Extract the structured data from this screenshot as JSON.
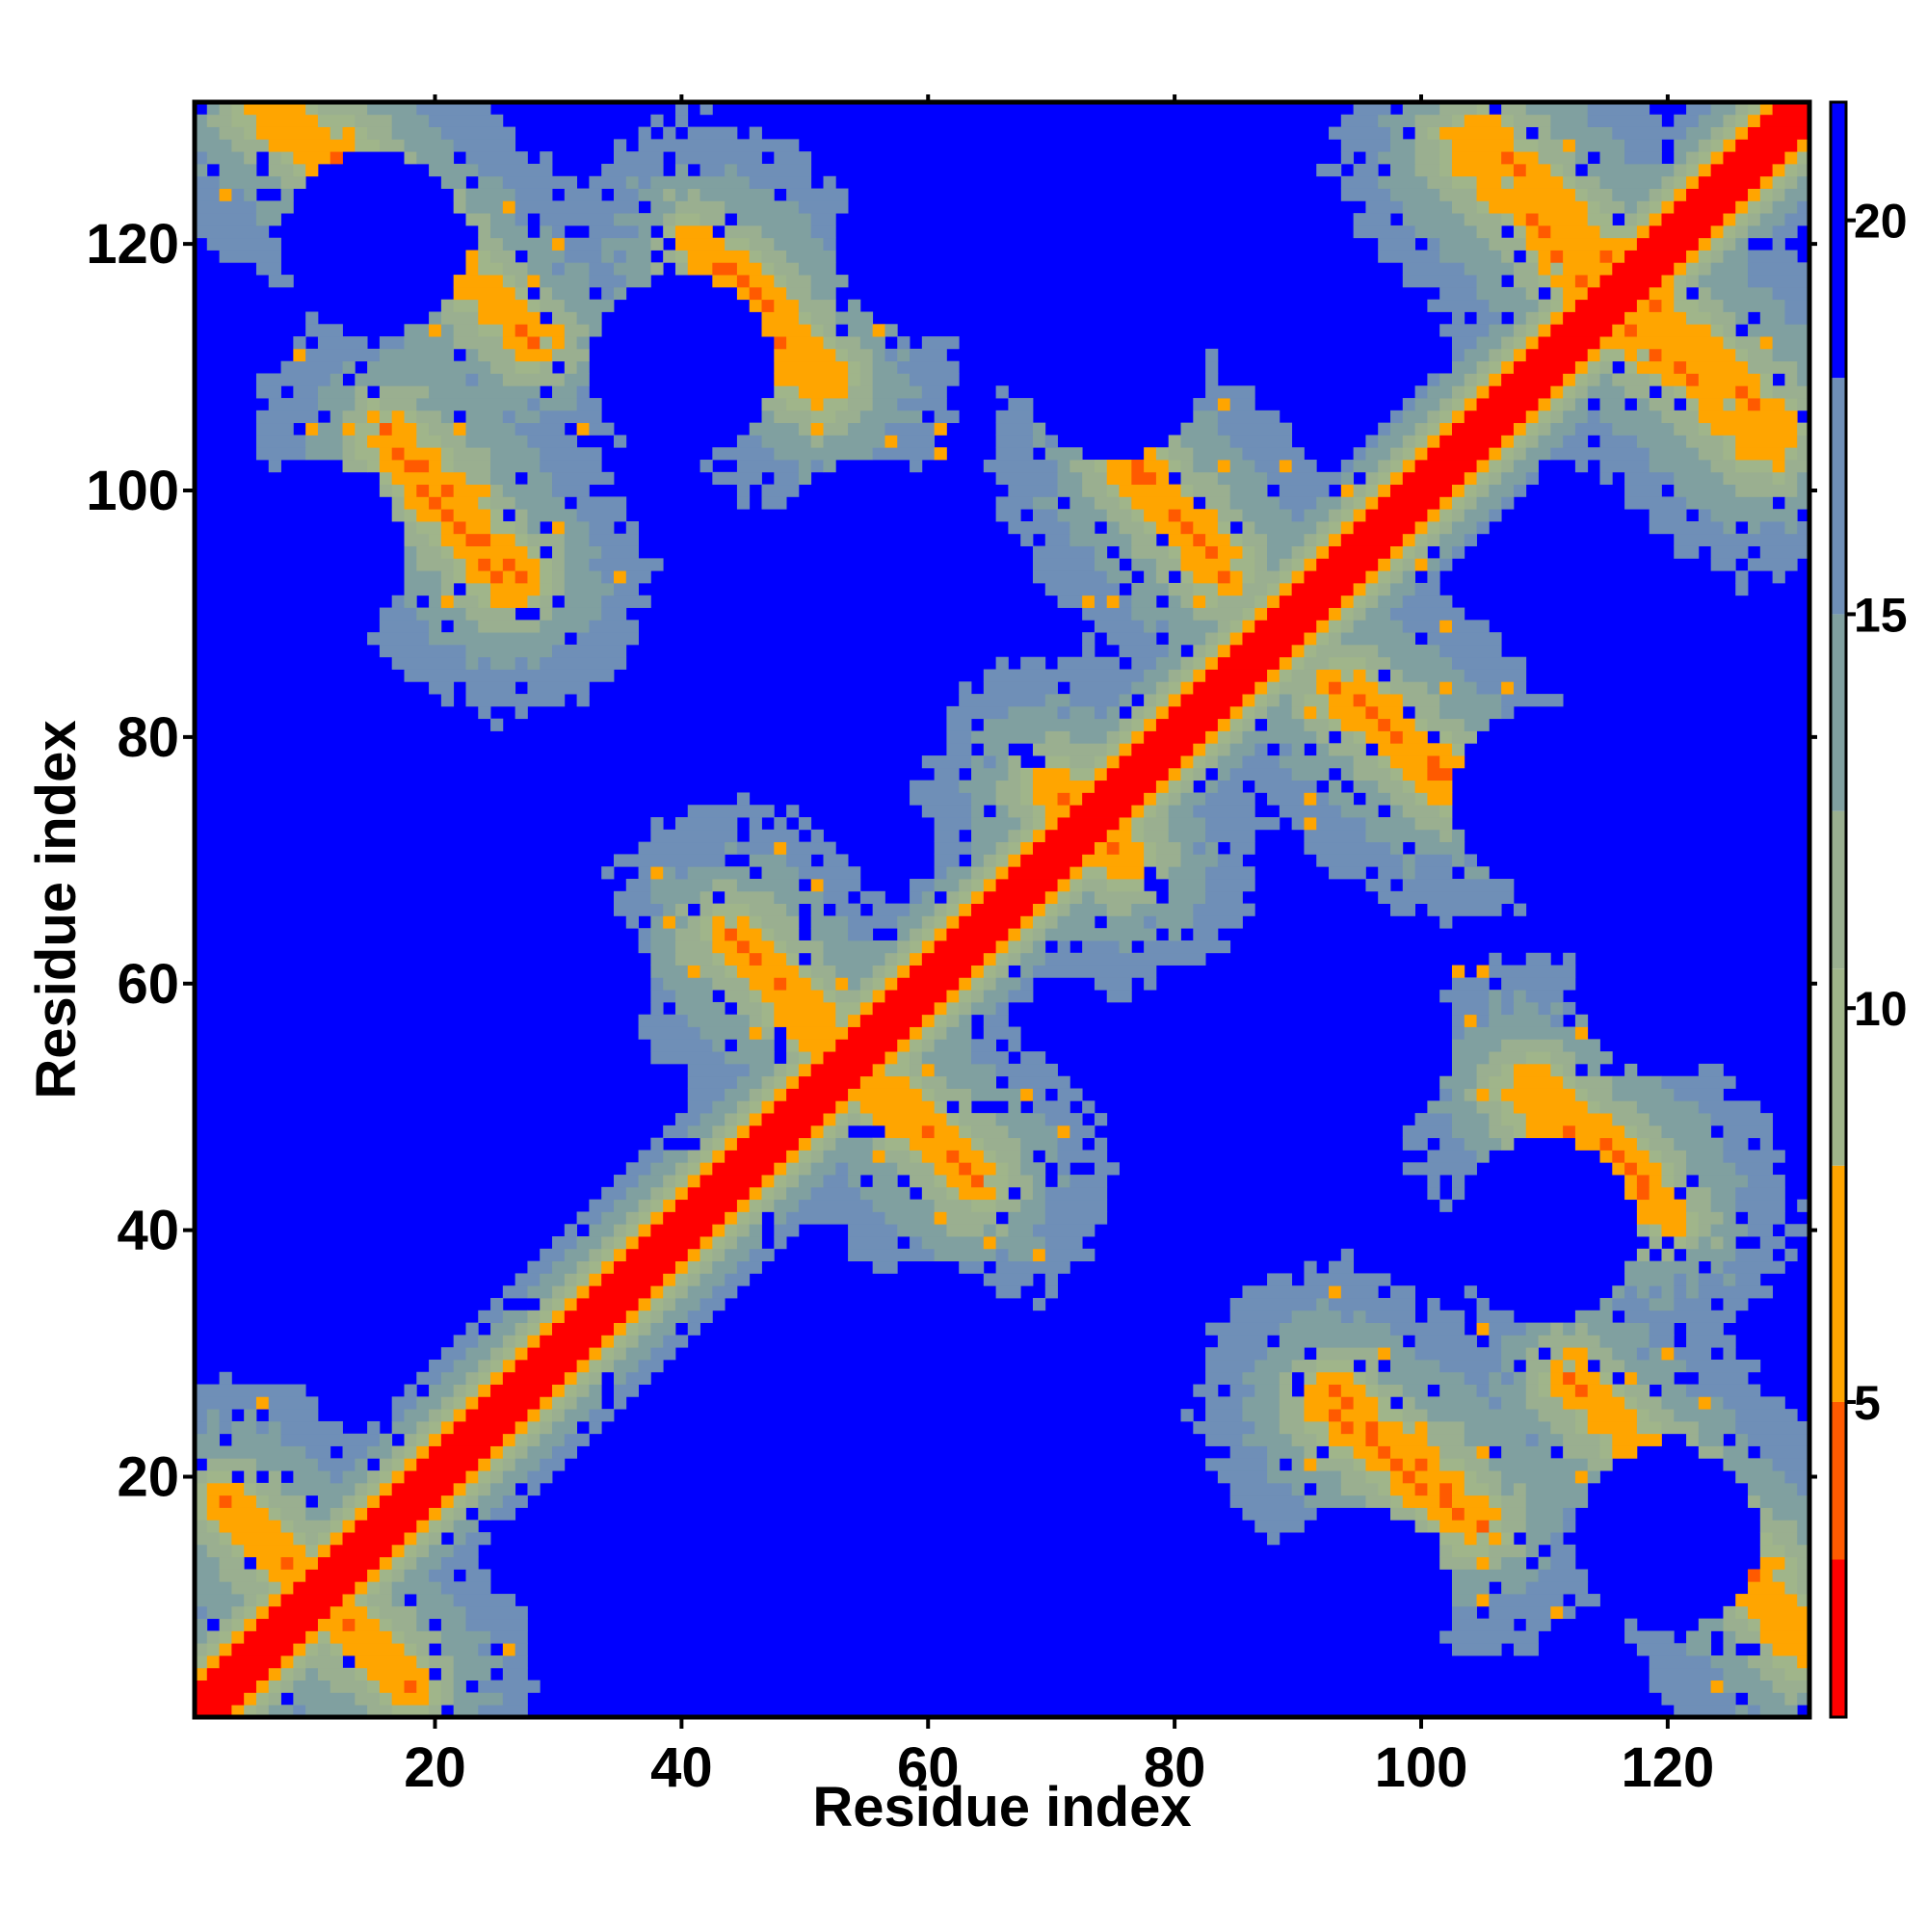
{
  "chart_data": {
    "type": "heatmap",
    "title": "",
    "xlabel": "Residue index",
    "ylabel": "Residue index",
    "n_residues": 131,
    "xlim": [
      1,
      131
    ],
    "ylim": [
      1,
      131
    ],
    "x_ticks": [
      20,
      40,
      60,
      80,
      100,
      120
    ],
    "y_ticks": [
      20,
      40,
      60,
      80,
      100,
      120
    ],
    "x_tick_labels": [
      "20",
      "40",
      "60",
      "80",
      "100",
      "120"
    ],
    "y_tick_labels": [
      "20",
      "40",
      "60",
      "80",
      "100",
      "120"
    ],
    "colorbar": {
      "range": [
        1,
        21.5
      ],
      "ticks": [
        5,
        10,
        15,
        20
      ],
      "tick_labels": [
        "5",
        "10",
        "15",
        "20"
      ],
      "bands": [
        {
          "from": 1,
          "to": 3,
          "color": "#ff0000"
        },
        {
          "from": 3,
          "to": 5,
          "color": "#ff5a00"
        },
        {
          "from": 5,
          "to": 8,
          "color": "#ffa500"
        },
        {
          "from": 8,
          "to": 10.5,
          "color": "#a0b58a"
        },
        {
          "from": 10.5,
          "to": 12.5,
          "color": "#9aaf90"
        },
        {
          "from": 12.5,
          "to": 15,
          "color": "#80a0a0"
        },
        {
          "from": 15,
          "to": 18,
          "color": "#6f8fb7"
        },
        {
          "from": 18,
          "to": 21.5,
          "color": "#0000ff"
        }
      ]
    },
    "grid": false,
    "legend": "colorbar-right",
    "description_of_values": "Symmetric contact/distance map: value ~1-3 along the diagonal (red), orange bands for beta-strand pairings, greenish-grey for intermediate distances, blue for distances above ~18.",
    "strand_pairs": [
      {
        "a": [
          3,
          18
        ],
        "b": [
          18,
          3
        ],
        "kind": "antiparallel"
      },
      {
        "a": [
          12,
          28
        ],
        "b": [
          128,
          112
        ],
        "kind": "antiparallel"
      },
      {
        "a": [
          16,
          26
        ],
        "b": [
          104,
          92
        ],
        "kind": "antiparallel"
      },
      {
        "a": [
          41,
          51
        ],
        "b": [
          120,
          108
        ],
        "kind": "antiparallel"
      },
      {
        "a": [
          44,
          52
        ],
        "b": [
          64,
          56
        ],
        "kind": "antiparallel"
      },
      {
        "a": [
          54,
          64
        ],
        "b": [
          53,
          44
        ],
        "kind": "antiparallel"
      },
      {
        "a": [
          76,
          84
        ],
        "b": [
          102,
          94
        ],
        "kind": "antiparallel"
      },
      {
        "a": [
          93,
          103
        ],
        "b": [
          84,
          76
        ],
        "kind": "antiparallel"
      },
      {
        "a": [
          93,
          105
        ],
        "b": [
          27,
          16
        ],
        "kind": "antiparallel"
      },
      {
        "a": [
          103,
          118
        ],
        "b": [
          128,
          112
        ],
        "kind": "antiparallel"
      },
      {
        "a": [
          109,
          118
        ],
        "b": [
          52,
          44
        ],
        "kind": "antiparallel"
      },
      {
        "a": [
          117,
          129
        ],
        "b": [
          117,
          105
        ],
        "kind": "antiparallel"
      },
      {
        "a": [
          125,
          131
        ],
        "b": [
          14,
          6
        ],
        "kind": "antiparallel"
      },
      {
        "a": [
          70,
          76
        ],
        "b": [
          76,
          70
        ],
        "kind": "cluster"
      }
    ],
    "far_region_centers": [
      [
        15,
        120
      ],
      [
        30,
        60
      ],
      [
        15,
        40
      ],
      [
        70,
        115
      ],
      [
        55,
        95
      ],
      [
        110,
        40
      ],
      [
        110,
        75
      ],
      [
        95,
        10
      ],
      [
        60,
        15
      ],
      [
        85,
        55
      ],
      [
        110,
        95
      ],
      [
        120,
        60
      ]
    ]
  }
}
